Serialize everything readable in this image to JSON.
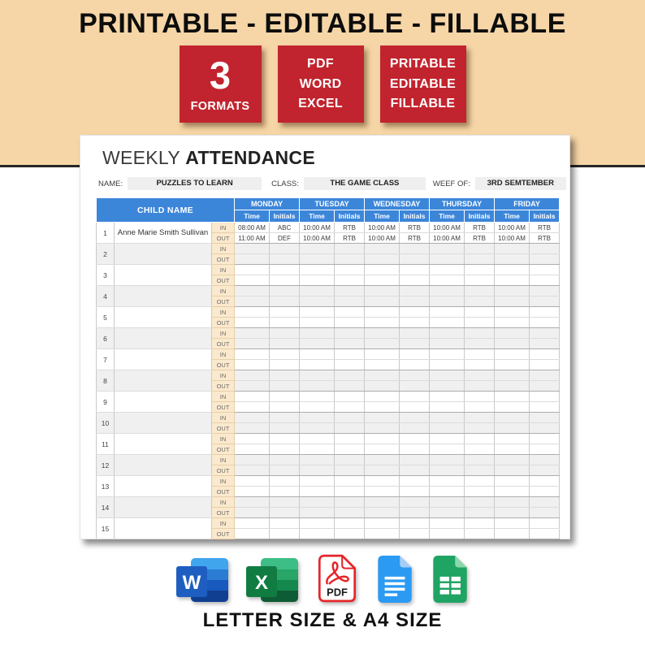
{
  "banner": {
    "background_color": "#F6D6A7",
    "title": "PRINTABLE - EDITABLE - FILLABLE",
    "badge_color": "#C1242E",
    "badges": [
      {
        "big": "3",
        "small": "FORMATS"
      },
      {
        "lines": [
          "PDF",
          "WORD",
          "EXCEL"
        ]
      },
      {
        "lines": [
          "PRITABLE",
          "EDITABLE",
          "FILLABLE"
        ]
      }
    ]
  },
  "sheet": {
    "title_light": "WEEKLY",
    "title_bold": "ATTENDANCE",
    "meta": [
      {
        "label": "NAME:",
        "value": "PUZZLES TO LEARN"
      },
      {
        "label": "CLASS:",
        "value": "THE GAME CLASS"
      },
      {
        "label": "WEEF OF:",
        "value": "3RD SEMTEMBER"
      }
    ],
    "table": {
      "header_color": "#3C86DA",
      "inout_color": "#FBE9CD",
      "stripe_color": "#F0F0F0",
      "child_name_header": "CHILD NAME",
      "days": [
        "MONDAY",
        "TUESDAY",
        "WEDNESDAY",
        "THURSDAY",
        "FRIDAY"
      ],
      "subheaders": [
        "Time",
        "Initials"
      ],
      "in_label": "IN",
      "out_label": "OUT",
      "row_count": 15,
      "filled_rows": [
        {
          "num": "1",
          "name": "Anne Marie Smith Sullivan",
          "in": [
            [
              "08:00 AM",
              "ABC"
            ],
            [
              "10:00 AM",
              "RTB"
            ],
            [
              "10:00 AM",
              "RTB"
            ],
            [
              "10:00 AM",
              "RTB"
            ],
            [
              "10:00 AM",
              "RTB"
            ]
          ],
          "out": [
            [
              "11:00 AM",
              "DEF"
            ],
            [
              "10:00 AM",
              "RTB"
            ],
            [
              "10:00 AM",
              "RTB"
            ],
            [
              "10:00 AM",
              "RTB"
            ],
            [
              "10:00 AM",
              "RTB"
            ]
          ]
        }
      ]
    }
  },
  "footer": {
    "icons": [
      {
        "name": "word-icon",
        "letter": "W"
      },
      {
        "name": "excel-icon",
        "letter": "X"
      },
      {
        "name": "pdf-icon",
        "label": "PDF"
      },
      {
        "name": "google-docs-icon"
      },
      {
        "name": "google-sheets-icon"
      }
    ],
    "caption": "LETTER SIZE & A4 SIZE"
  }
}
